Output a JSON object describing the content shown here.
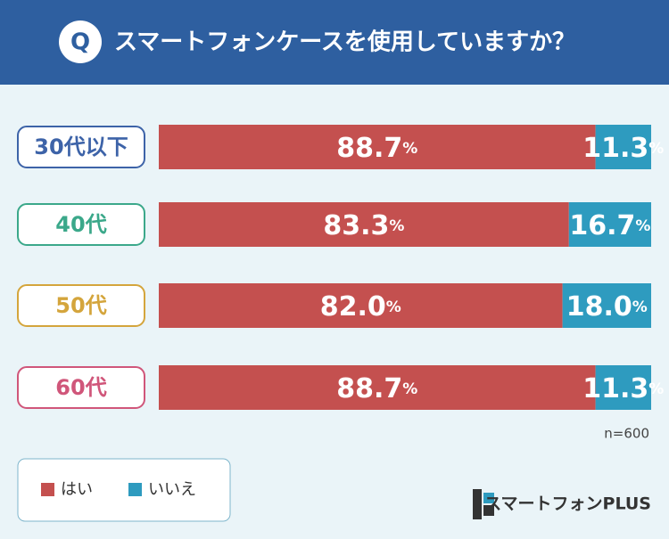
{
  "chart_data": {
    "type": "stacked-bar-horizontal",
    "title": "スマートフォンケースを使用していますか？",
    "title_badge": "Q",
    "categories": [
      "30代以下",
      "40代",
      "50代",
      "60代"
    ],
    "category_colors": [
      "#3d63a8",
      "#3ba88a",
      "#d4a53c",
      "#d0567a"
    ],
    "series": [
      {
        "name": "はい",
        "color": "#c4504f",
        "values": [
          88.7,
          83.3,
          82.0,
          88.7
        ],
        "value_labels": [
          "88.7%",
          "83.3%",
          "82.0%",
          "88.7%"
        ]
      },
      {
        "name": "いいえ",
        "color": "#2e9bbf",
        "values": [
          11.3,
          16.7,
          18.0,
          11.3
        ],
        "value_labels": [
          "11.3%",
          "16.7%",
          "18.0%",
          "11.3%"
        ]
      }
    ],
    "xlim": [
      0,
      100
    ],
    "note": "n=600",
    "brand": "スマートフォンPLUS"
  }
}
